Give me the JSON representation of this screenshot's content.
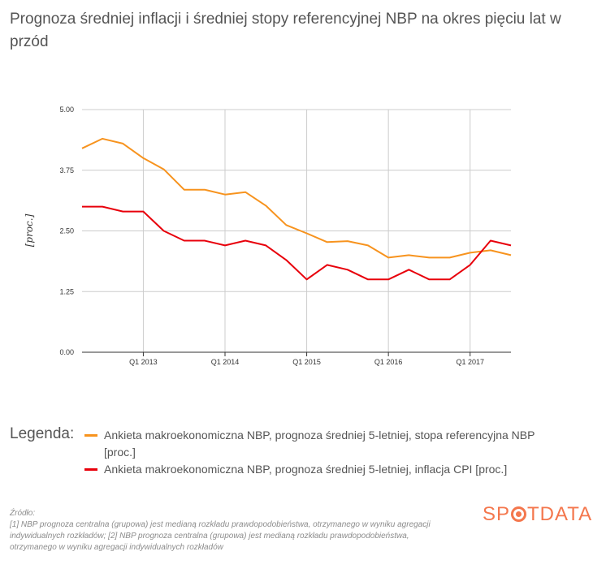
{
  "title": "Prognoza średniej inflacji i średniej stopy referencyjnej NBP na okres pięciu lat w przód",
  "chart_data": {
    "type": "line",
    "ylabel": "[proc.]",
    "xlabel": "",
    "ylim": [
      0,
      5
    ],
    "yticks": [
      "0.00",
      "1.25",
      "2.50",
      "3.75",
      "5.00"
    ],
    "ytick_values": [
      0,
      1.25,
      2.5,
      3.75,
      5
    ],
    "xtick_labels": [
      "Q1 2013",
      "Q1 2014",
      "Q1 2015",
      "Q1 2016",
      "Q1 2017"
    ],
    "xtick_index": [
      3,
      7,
      11,
      15,
      19
    ],
    "grid": true,
    "series": [
      {
        "name": "Ankieta makroekonomiczna NBP, prognoza średniej 5-letniej, stopa referencyjna NBP [proc.]",
        "color": "#f7931e",
        "values": [
          4.2,
          4.4,
          4.3,
          4.0,
          3.77,
          3.35,
          3.35,
          3.25,
          3.3,
          3.02,
          2.62,
          2.45,
          2.27,
          2.29,
          2.2,
          1.95,
          2.0,
          1.95,
          1.95,
          2.05,
          2.1,
          2.0
        ]
      },
      {
        "name": "Ankieta makroekonomiczna NBP, prognoza średniej 5-letniej, inflacja CPI [proc.]",
        "color": "#e8000b",
        "values": [
          3.0,
          3.0,
          2.9,
          2.9,
          2.5,
          2.3,
          2.3,
          2.2,
          2.3,
          2.2,
          1.9,
          1.5,
          1.8,
          1.7,
          1.5,
          1.5,
          1.7,
          1.5,
          1.5,
          1.8,
          2.3,
          2.2
        ]
      }
    ]
  },
  "legend": {
    "title": "Legenda:",
    "items": [
      "Ankieta makroekonomiczna NBP, prognoza średniej 5-letniej, stopa referencyjna NBP [proc.]",
      "Ankieta makroekonomiczna NBP, prognoza średniej 5-letniej, inflacja CPI [proc.]"
    ]
  },
  "source": {
    "heading": "Źródło:",
    "text": "[1] NBP prognoza centralna (grupowa) jest medianą rozkładu prawdopodobieństwa, otrzymanego w wyniku agregacji indywidualnych rozkładów; [2] NBP prognoza centralna (grupowa) jest medianą rozkładu prawdopodobieństwa, otrzymanego w wyniku agregacji indywidualnych rozkładów"
  },
  "logo": {
    "part1": "SP",
    "part2": "TDATA"
  }
}
